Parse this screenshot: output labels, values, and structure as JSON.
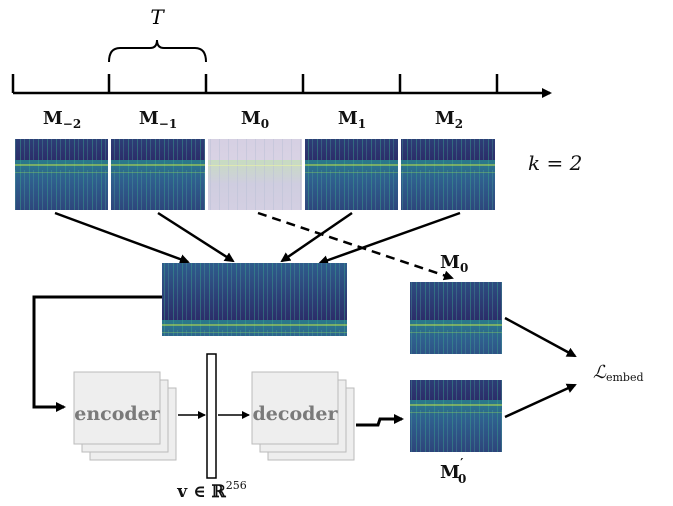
{
  "timeline": {
    "period_label": "T"
  },
  "frames": [
    {
      "base": "M",
      "sub": "−2"
    },
    {
      "base": "M",
      "sub": "−1"
    },
    {
      "base": "M",
      "sub": "0"
    },
    {
      "base": "M",
      "sub": "1"
    },
    {
      "base": "M",
      "sub": "2"
    }
  ],
  "k_label": "k = 2",
  "target": {
    "base": "M",
    "sub": "0"
  },
  "reconstruction": {
    "base": "M",
    "sub": "0",
    "prime": "′"
  },
  "encoder_label": "encoder",
  "decoder_label": "decoder",
  "vector_label": {
    "prefix": "v ∈ ℝ",
    "sup": "256"
  },
  "loss_label": {
    "base": "ℒ",
    "sub": "embed"
  },
  "colors": {
    "spec_dark": "#2a2f6e",
    "spec_mid": "#1f8a8a",
    "spec_bright": "#c8e04a",
    "masked": "#d7d3e2",
    "box_fill": "#eeeeee",
    "box_stroke": "#bbbbbb"
  }
}
